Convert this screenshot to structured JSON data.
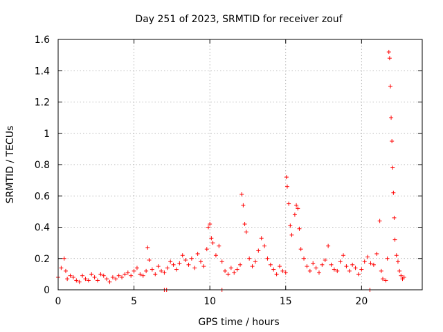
{
  "chart_data": {
    "type": "scatter",
    "title": "Day 251 of 2023, SRMTID for receiver zouf",
    "xlabel": "GPS time / hours",
    "ylabel": "SRMTID / TECUs",
    "xlim": [
      0,
      24
    ],
    "ylim": [
      0,
      1.6
    ],
    "xticks": [
      0,
      5,
      10,
      15,
      20
    ],
    "xtick_labels": [
      "0",
      "5",
      "10",
      "15",
      "20"
    ],
    "yticks": [
      0,
      0.2,
      0.4,
      0.6,
      0.8,
      1,
      1.2,
      1.4,
      1.6
    ],
    "ytick_labels": [
      "0",
      "0.2",
      "0.4",
      "0.6",
      "0.8",
      "1",
      "1.2",
      "1.4",
      "1.6"
    ],
    "grid": true,
    "marker": "plus",
    "color": "#ff0000",
    "series": [
      {
        "name": "SRMTID",
        "x": [
          0.0,
          0.2,
          0.4,
          0.5,
          0.6,
          0.8,
          1.0,
          1.2,
          1.4,
          1.6,
          1.8,
          2.0,
          2.2,
          2.4,
          2.6,
          2.8,
          3.0,
          3.2,
          3.4,
          3.6,
          3.8,
          4.0,
          4.2,
          4.4,
          4.6,
          4.8,
          5.0,
          5.2,
          5.4,
          5.6,
          5.8,
          5.9,
          6.0,
          6.2,
          6.4,
          6.6,
          6.8,
          7.0,
          7.2,
          7.4,
          7.6,
          7.8,
          8.0,
          8.2,
          8.4,
          8.6,
          8.8,
          9.0,
          9.2,
          9.4,
          9.6,
          9.8,
          9.9,
          10.0,
          10.1,
          10.2,
          10.4,
          10.6,
          10.8,
          11.0,
          11.2,
          11.4,
          11.6,
          11.8,
          12.0,
          12.1,
          12.2,
          12.3,
          12.4,
          12.6,
          12.8,
          13.0,
          13.2,
          13.4,
          13.6,
          13.8,
          14.0,
          14.2,
          14.4,
          14.6,
          14.8,
          15.0,
          15.05,
          15.1,
          15.2,
          15.3,
          15.4,
          15.6,
          15.7,
          15.8,
          15.9,
          16.0,
          16.2,
          16.4,
          16.6,
          16.8,
          17.0,
          17.2,
          17.4,
          17.6,
          17.8,
          18.0,
          18.2,
          18.4,
          18.6,
          18.8,
          19.0,
          19.2,
          19.4,
          19.6,
          19.8,
          20.0,
          20.2,
          20.4,
          20.6,
          20.8,
          21.0,
          21.2,
          21.3,
          21.4,
          21.6,
          21.7,
          21.8,
          21.85,
          21.9,
          21.95,
          22.0,
          22.05,
          22.1,
          22.15,
          22.2,
          22.3,
          22.4,
          22.5,
          22.6,
          22.7,
          22.8,
          7.0,
          7.15,
          10.8,
          20.55
        ],
        "y": [
          0.08,
          0.14,
          0.2,
          0.12,
          0.07,
          0.09,
          0.08,
          0.06,
          0.05,
          0.09,
          0.07,
          0.06,
          0.1,
          0.08,
          0.06,
          0.1,
          0.09,
          0.07,
          0.05,
          0.08,
          0.07,
          0.09,
          0.08,
          0.1,
          0.11,
          0.09,
          0.12,
          0.14,
          0.1,
          0.09,
          0.12,
          0.27,
          0.19,
          0.13,
          0.1,
          0.15,
          0.12,
          0.11,
          0.14,
          0.18,
          0.16,
          0.13,
          0.17,
          0.22,
          0.19,
          0.16,
          0.2,
          0.14,
          0.23,
          0.18,
          0.15,
          0.26,
          0.4,
          0.42,
          0.33,
          0.3,
          0.22,
          0.28,
          0.18,
          0.12,
          0.1,
          0.14,
          0.11,
          0.13,
          0.16,
          0.61,
          0.54,
          0.42,
          0.37,
          0.2,
          0.15,
          0.18,
          0.25,
          0.33,
          0.28,
          0.2,
          0.16,
          0.13,
          0.1,
          0.15,
          0.12,
          0.11,
          0.72,
          0.66,
          0.55,
          0.41,
          0.35,
          0.48,
          0.54,
          0.52,
          0.39,
          0.26,
          0.2,
          0.15,
          0.12,
          0.17,
          0.14,
          0.11,
          0.16,
          0.19,
          0.28,
          0.16,
          0.13,
          0.12,
          0.18,
          0.22,
          0.15,
          0.12,
          0.16,
          0.14,
          0.1,
          0.13,
          0.18,
          0.21,
          0.17,
          0.16,
          0.23,
          0.44,
          0.12,
          0.07,
          0.06,
          0.2,
          1.52,
          1.48,
          1.3,
          1.1,
          0.95,
          0.78,
          0.62,
          0.46,
          0.32,
          0.22,
          0.18,
          0.12,
          0.09,
          0.07,
          0.08,
          0.0,
          0.0,
          0.0,
          0.0
        ]
      }
    ]
  }
}
